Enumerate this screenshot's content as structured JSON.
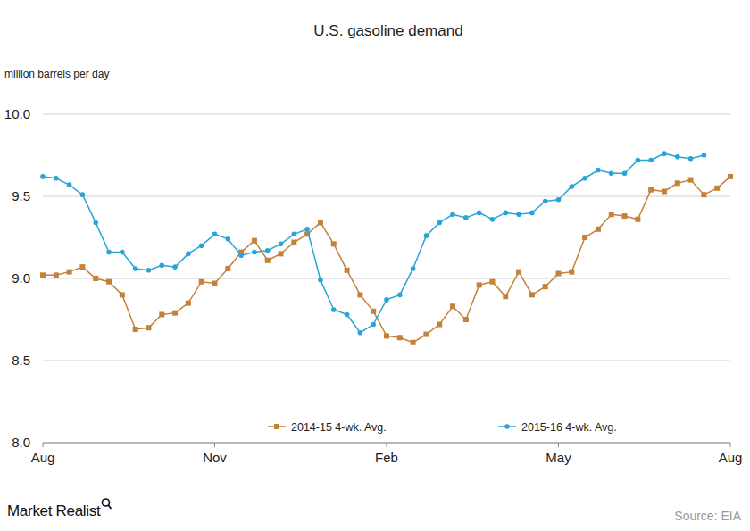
{
  "chart_data": {
    "type": "line",
    "title": "U.S. gasoline demand",
    "y_label": "million barrels per day",
    "categories": [
      "Aug",
      null,
      null,
      null,
      null,
      null,
      null,
      null,
      null,
      null,
      null,
      null,
      null,
      "Nov",
      null,
      null,
      null,
      null,
      null,
      null,
      null,
      null,
      null,
      null,
      null,
      null,
      "Feb",
      null,
      null,
      null,
      null,
      null,
      null,
      null,
      null,
      null,
      null,
      null,
      null,
      "May",
      null,
      null,
      null,
      null,
      null,
      null,
      null,
      null,
      null,
      null,
      null,
      null,
      "Aug"
    ],
    "series": [
      {
        "name": "2014-15  4-wk. Avg.",
        "color": "#c4813a",
        "marker": "square",
        "values": [
          9.02,
          9.02,
          9.04,
          9.07,
          9.0,
          8.98,
          8.9,
          8.69,
          8.7,
          8.78,
          8.79,
          8.85,
          8.98,
          8.97,
          9.06,
          9.16,
          9.23,
          9.11,
          9.15,
          9.22,
          9.27,
          9.34,
          9.21,
          9.05,
          8.9,
          8.8,
          8.65,
          8.64,
          8.61,
          8.66,
          8.72,
          8.83,
          8.75,
          8.96,
          8.98,
          8.89,
          9.04,
          8.9,
          8.95,
          9.03,
          9.04,
          9.25,
          9.3,
          9.39,
          9.38,
          9.36,
          9.54,
          9.53,
          9.58,
          9.6,
          9.51,
          9.55,
          9.62
        ]
      },
      {
        "name": "2015-16  4-wk. Avg.",
        "color": "#29a3d8",
        "marker": "circle",
        "values": [
          9.62,
          9.61,
          9.57,
          9.51,
          9.34,
          9.16,
          9.16,
          9.06,
          9.05,
          9.08,
          9.07,
          9.15,
          9.2,
          9.27,
          9.24,
          9.14,
          9.16,
          9.17,
          9.21,
          9.27,
          9.3,
          8.99,
          8.81,
          8.78,
          8.67,
          8.72,
          8.87,
          8.9,
          9.06,
          9.26,
          9.34,
          9.39,
          9.37,
          9.4,
          9.36,
          9.4,
          9.39,
          9.4,
          9.47,
          9.48,
          9.56,
          9.61,
          9.66,
          9.64,
          9.64,
          9.72,
          9.72,
          9.76,
          9.74,
          9.73,
          9.75,
          null,
          null
        ]
      }
    ],
    "ylim": [
      8,
      10
    ],
    "yticks": [
      {
        "value": 8,
        "label": "8.0"
      },
      8.5,
      {
        "value": 9,
        "label": "9.0"
      },
      9.5,
      {
        "value": 10,
        "label": "10.0"
      }
    ],
    "grid": true,
    "legend": "bottom",
    "brand": "Market Realist",
    "source": "Source: EIA"
  }
}
